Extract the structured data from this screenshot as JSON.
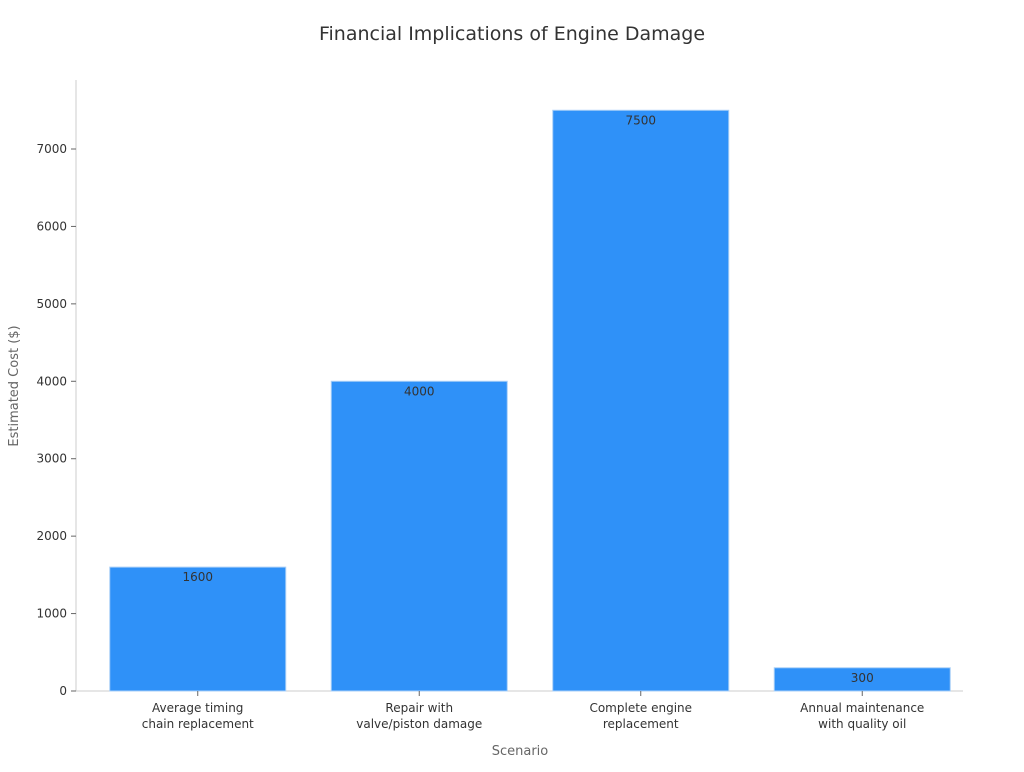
{
  "chart_data": {
    "type": "bar",
    "title": "Financial Implications of Engine Damage",
    "xlabel": "Scenario",
    "ylabel": "Estimated Cost ($)",
    "categories": [
      [
        "Average timing",
        "chain replacement"
      ],
      [
        "Repair with",
        "valve/piston damage"
      ],
      [
        "Complete engine",
        "replacement"
      ],
      [
        "Annual maintenance",
        "with quality oil"
      ]
    ],
    "values": [
      1600,
      4000,
      7500,
      300
    ],
    "data_labels": [
      "1600",
      "4000",
      "7500",
      "300"
    ],
    "yticks": [
      0,
      1000,
      2000,
      3000,
      4000,
      5000,
      6000,
      7000
    ],
    "ylim": [
      0,
      7900
    ],
    "grid": false,
    "bar_color": "#2f91f8",
    "bar_edge_color": "#a9cff7"
  }
}
